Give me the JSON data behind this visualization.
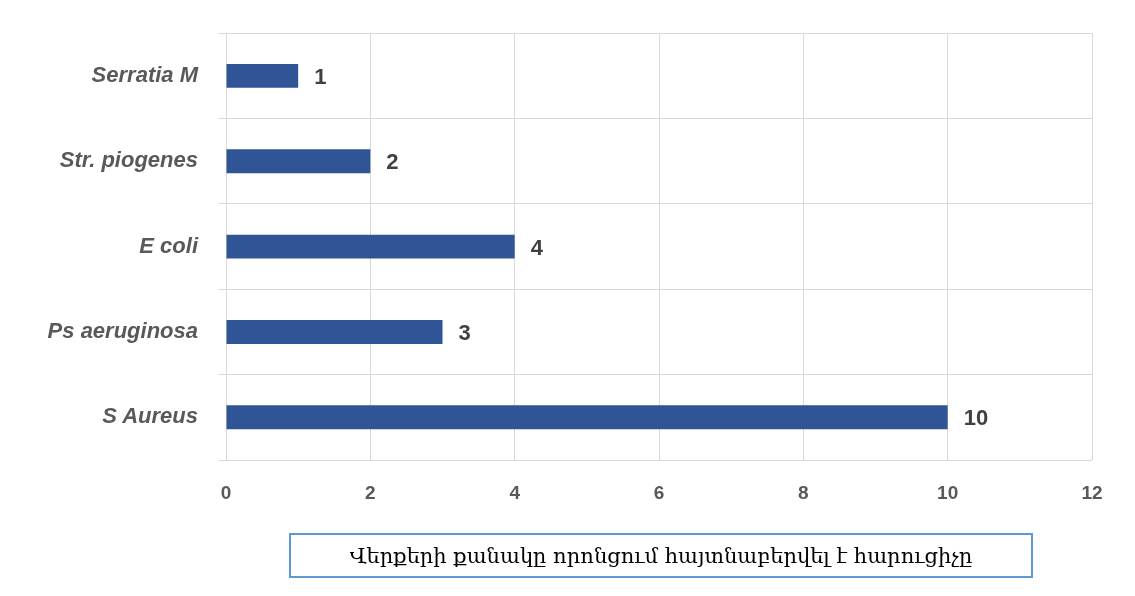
{
  "chart_data": {
    "type": "bar",
    "orientation": "horizontal",
    "xlabel": "Վերքերի քանակը որոնցում հայտնաբերվել է հարուցիչը",
    "categories": [
      "Serratia M",
      "Str. piogenes",
      "E coli",
      "Ps aeruginosa",
      "S Aureus"
    ],
    "values": [
      1,
      2,
      4,
      3,
      10
    ],
    "color": "#2f5597",
    "xlim": [
      0,
      12
    ],
    "xticks": [
      0,
      2,
      4,
      6,
      8,
      10,
      12
    ],
    "grid": true,
    "data_labels": true
  }
}
